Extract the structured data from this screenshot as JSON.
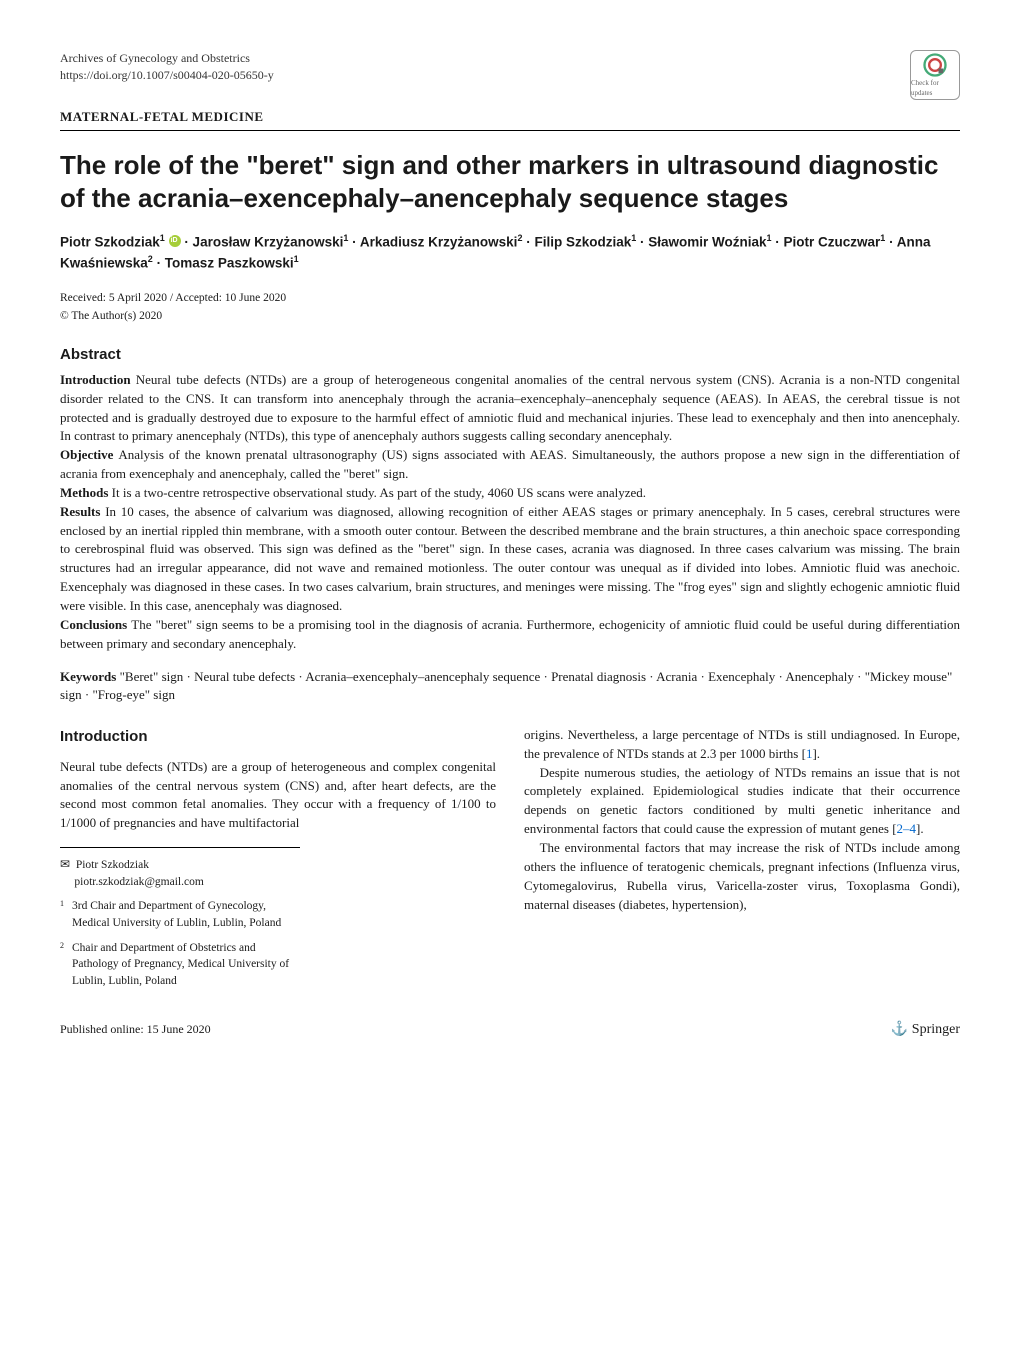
{
  "journal": "Archives of Gynecology and Obstetrics",
  "doi": "https://doi.org/10.1007/s00404-020-05650-y",
  "section_tag": "MATERNAL-FETAL MEDICINE",
  "check_updates_label": "Check for updates",
  "title": "The role of the \"beret\" sign and other markers in ultrasound diagnostic of the acrania–exencephaly–anencephaly sequence stages",
  "authors_html": "Piotr Szkodziak<sup>1</sup> <span class=\"orcid-icon\" data-name=\"orcid-icon\" data-interactable=\"false\"></span> · Jarosław Krzyżanowski<sup>1</sup> · Arkadiusz Krzyżanowski<sup>2</sup> · Filip Szkodziak<sup>1</sup> · Sławomir Woźniak<sup>1</sup> · Piotr Czuczwar<sup>1</sup> · Anna Kwaśniewska<sup>2</sup> · Tomasz Paszkowski<sup>1</sup>",
  "received": "Received: 5 April 2020 / Accepted: 10 June 2020",
  "copyright": "© The Author(s) 2020",
  "abstract_heading": "Abstract",
  "abstract": {
    "introduction_label": "Introduction",
    "introduction": "Neural tube defects (NTDs) are a group of heterogeneous congenital anomalies of the central nervous system (CNS). Acrania is a non-NTD congenital disorder related to the CNS. It can transform into anencephaly through the acrania–exencephaly–anencephaly sequence (AEAS). In AEAS, the cerebral tissue is not protected and is gradually destroyed due to exposure to the harmful effect of amniotic fluid and mechanical injuries. These lead to exencephaly and then into anencephaly. In contrast to primary anencephaly (NTDs), this type of anencephaly authors suggests calling secondary anencephaly.",
    "objective_label": "Objective",
    "objective": "Analysis of the known prenatal ultrasonography (US) signs associated with AEAS. Simultaneously, the authors propose a new sign in the differentiation of acrania from exencephaly and anencephaly, called the \"beret\" sign.",
    "methods_label": "Methods",
    "methods": "It is a two-centre retrospective observational study. As part of the study, 4060 US scans were analyzed.",
    "results_label": "Results",
    "results": "In 10 cases, the absence of calvarium was diagnosed, allowing recognition of either AEAS stages or primary anencephaly. In 5 cases, cerebral structures were enclosed by an inertial rippled thin membrane, with a smooth outer contour. Between the described membrane and the brain structures, a thin anechoic space corresponding to cerebrospinal fluid was observed. This sign was defined as the \"beret\" sign. In these cases, acrania was diagnosed. In three cases calvarium was missing. The brain structures had an irregular appearance, did not wave and remained motionless. The outer contour was unequal as if divided into lobes. Amniotic fluid was anechoic. Exencephaly was diagnosed in these cases. In two cases calvarium, brain structures, and meninges were missing. The \"frog eyes\" sign and slightly echogenic amniotic fluid were visible. In this case, anencephaly was diagnosed.",
    "conclusions_label": "Conclusions",
    "conclusions": "The \"beret\" sign seems to be a promising tool in the diagnosis of acrania. Furthermore, echogenicity of amniotic fluid could be useful during differentiation between primary and secondary anencephaly."
  },
  "keywords_label": "Keywords",
  "keywords": "\"Beret\" sign · Neural tube defects · Acrania–exencephaly–anencephaly sequence · Prenatal diagnosis · Acrania · Exencephaly · Anencephaly · \"Mickey mouse\" sign · \"Frog-eye\" sign",
  "intro_heading": "Introduction",
  "intro_col1_p1": "Neural tube defects (NTDs) are a group of heterogeneous and complex congenital anomalies of the central nervous system (CNS) and, after heart defects, are the second most common fetal anomalies. They occur with a frequency of 1/100 to 1/1000 of pregnancies and have multifactorial",
  "intro_col2_p1": "origins. Nevertheless, a large percentage of NTDs is still undiagnosed. In Europe, the prevalence of NTDs stands at 2.3 per 1000 births [",
  "intro_col2_ref1": "1",
  "intro_col2_p1_end": "].",
  "intro_col2_p2": "Despite numerous studies, the aetiology of NTDs remains an issue that is not completely explained. Epidemiological studies indicate that their occurrence depends on genetic factors conditioned by multi genetic inheritance and environmental factors that could cause the expression of mutant genes [",
  "intro_col2_ref2": "2–4",
  "intro_col2_p2_end": "].",
  "intro_col2_p3": "The environmental factors that may increase the risk of NTDs include among others the influence of teratogenic chemicals, pregnant infections (Influenza virus, Cytomegalovirus, Rubella virus, Varicella-zoster virus, Toxoplasma Gondi), maternal diseases (diabetes, hypertension),",
  "correspondence": {
    "name": "Piotr Szkodziak",
    "email": "piotr.szkodziak@gmail.com"
  },
  "affiliations": [
    {
      "num": "1",
      "text": "3rd Chair and Department of Gynecology, Medical University of Lublin, Lublin, Poland"
    },
    {
      "num": "2",
      "text": "Chair and Department of Obstetrics and Pathology of Pregnancy, Medical University of Lublin, Lublin, Poland"
    }
  ],
  "published_online": "Published online: 15 June 2020",
  "publisher": "Springer",
  "colors": {
    "text": "#1a1a1a",
    "background": "#ffffff",
    "link": "#0066cc",
    "orcid": "#a6ce39",
    "rule": "#000000"
  }
}
